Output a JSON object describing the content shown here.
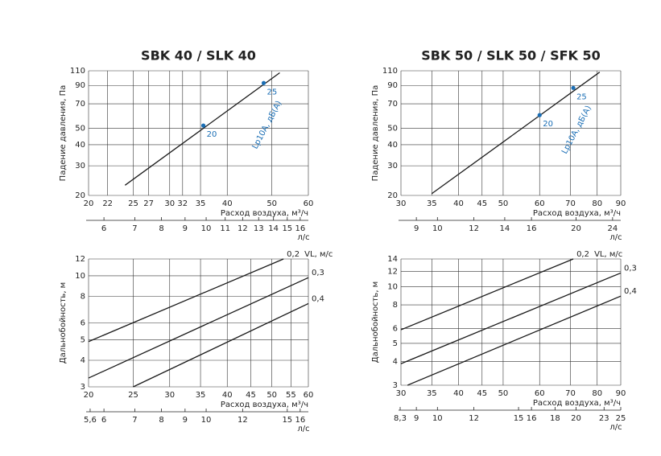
{
  "chart_data": [
    {
      "type": "line",
      "title": "SBK 40 / SLK 40",
      "ylabel": "Падение давления, Па",
      "xlabel": "Расход воздуха, м³/ч",
      "xlog": true,
      "ylog": true,
      "grid": true,
      "xlim": [
        20,
        60
      ],
      "xticks": [
        20,
        22,
        25,
        27,
        30,
        32,
        35,
        40,
        50,
        60
      ],
      "ylim": [
        20,
        110
      ],
      "yticks": [
        20,
        30,
        40,
        50,
        70,
        90,
        110
      ],
      "x2label": "л/с",
      "x2lim": [
        5.556,
        16.667
      ],
      "x2ticks": [
        6,
        7,
        8,
        9,
        10,
        11,
        12,
        13,
        14,
        15,
        16
      ],
      "series": [
        {
          "color": "#1a1a1a",
          "x": [
            24,
            52
          ],
          "values": [
            23,
            107
          ]
        }
      ],
      "markers": {
        "name": "Lp10A, дБ(A)",
        "color": "#1a6eb5",
        "x": [
          35.5,
          48
        ],
        "y": [
          52,
          93
        ],
        "values": [
          20,
          25
        ]
      }
    },
    {
      "type": "line",
      "title": "SBK 50 / SLK 50 / SFK 50",
      "ylabel": "Падение давления, Па",
      "xlabel": "Расход воздуха, м³/ч",
      "xlog": true,
      "ylog": true,
      "grid": true,
      "xlim": [
        30,
        90
      ],
      "xticks": [
        30,
        35,
        40,
        45,
        50,
        60,
        70,
        80,
        90
      ],
      "ylim": [
        20,
        110
      ],
      "yticks": [
        20,
        30,
        40,
        50,
        70,
        90,
        110
      ],
      "x2label": "л/с",
      "x2lim": [
        8.333,
        25
      ],
      "x2ticks": [
        9,
        10,
        12,
        14,
        16,
        20,
        24
      ],
      "series": [
        {
          "color": "#1a1a1a",
          "x": [
            35,
            81
          ],
          "values": [
            20.5,
            108
          ]
        }
      ],
      "markers": {
        "name": "Lp10A, дБ(A)",
        "color": "#1a6eb5",
        "x": [
          60,
          71
        ],
        "y": [
          60,
          87
        ],
        "values": [
          20,
          25
        ]
      }
    },
    {
      "type": "line",
      "ylabel": "Дальнобойность, м",
      "xlabel": "Расход воздуха, м³/ч",
      "legend_title": "VL, м/с",
      "xlog": true,
      "ylog": true,
      "grid": true,
      "xlim": [
        20,
        60
      ],
      "xticks": [
        20,
        25,
        30,
        35,
        40,
        45,
        50,
        55,
        60
      ],
      "ylim": [
        3,
        12
      ],
      "yticks": [
        3,
        4,
        5,
        6,
        8,
        10,
        12
      ],
      "x2label": "л/с",
      "x2lim": [
        5.556,
        16.667
      ],
      "x2ticks": [
        {
          "value": 5.6,
          "label": "5,6"
        },
        6,
        7,
        8,
        9,
        10,
        12,
        15,
        16
      ],
      "series": [
        {
          "name": "0,2",
          "color": "#1a1a1a",
          "x": [
            20,
            53
          ],
          "values": [
            4.9,
            12
          ]
        },
        {
          "name": "0,3",
          "color": "#1a1a1a",
          "x": [
            20,
            60
          ],
          "values": [
            3.3,
            9.8
          ]
        },
        {
          "name": "0,4",
          "color": "#1a1a1a",
          "x": [
            25,
            60
          ],
          "values": [
            3,
            7.4
          ]
        }
      ]
    },
    {
      "type": "line",
      "ylabel": "Дальнобойность, м",
      "xlabel": "Расход воздуха, м³/ч",
      "legend_title": "VL, м/с",
      "xlog": true,
      "ylog": true,
      "grid": true,
      "xlim": [
        30,
        90
      ],
      "xticks": [
        30,
        35,
        40,
        45,
        50,
        60,
        70,
        80,
        90
      ],
      "ylim": [
        3,
        14
      ],
      "yticks": [
        3,
        4,
        5,
        6,
        8,
        10,
        12,
        14
      ],
      "x2label": "л/с",
      "x2lim": [
        8.333,
        25
      ],
      "x2ticks": [
        {
          "value": 8.3,
          "label": "8,3"
        },
        9,
        10,
        12,
        15,
        16,
        18,
        20,
        23,
        25
      ],
      "series": [
        {
          "name": "0,2",
          "color": "#1a1a1a",
          "x": [
            30,
            71
          ],
          "values": [
            5.9,
            14
          ]
        },
        {
          "name": "0,3",
          "color": "#1a1a1a",
          "x": [
            30,
            90
          ],
          "values": [
            3.9,
            11.8
          ]
        },
        {
          "name": "0,4",
          "color": "#1a1a1a",
          "x": [
            31,
            90
          ],
          "values": [
            3,
            8.9
          ]
        }
      ]
    }
  ]
}
